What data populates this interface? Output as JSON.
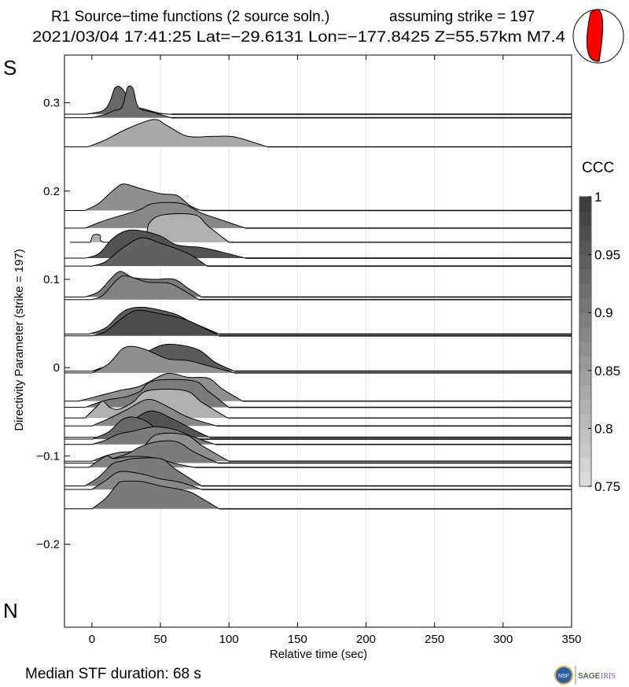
{
  "header": {
    "title_line1": "R1 Source−time functions (2 source soln.)",
    "strike_label": "assuming strike = 197",
    "title_line2": "2021/03/04 17:41:25  Lat=−29.6131 Lon=−177.8425  Z=55.57km  M7.4"
  },
  "labels": {
    "south": "S",
    "north": "N"
  },
  "footer": {
    "median_duration": "Median STF duration: 68 s",
    "logo_sage": "SAGE",
    "logo_iris": "IRIS",
    "logo_nsf": "NSF"
  },
  "colors": {
    "beachball": "#ff0000",
    "grid": "#e6e6e6"
  },
  "chart_data": {
    "type": "area",
    "title": "R1 Source-time functions (2 source soln.)",
    "xlabel": "Relative time (sec)",
    "ylabel": "Directivity Parameter (strike = 197)",
    "xlim": [
      -20,
      350
    ],
    "ylim": [
      -0.294,
      0.354
    ],
    "xticks": [
      0,
      50,
      100,
      150,
      200,
      250,
      300,
      350
    ],
    "xtick_labels": [
      "0",
      "50",
      "100",
      "150",
      "200",
      "250",
      "300",
      "350"
    ],
    "yticks": [
      0.3,
      0.2,
      0.1,
      0,
      -0.1,
      -0.2
    ],
    "ytick_labels": [
      "0.3",
      "0.2",
      "0.1",
      "0",
      "−0.1",
      "−0.2"
    ],
    "grid": "vertical",
    "colorbar": {
      "label": "CCC",
      "range": [
        0.75,
        1
      ],
      "ticks": [
        1,
        0.95,
        0.9,
        0.85,
        0.8,
        0.75
      ],
      "tick_labels": [
        "1",
        "0.95",
        "0.9",
        "0.85",
        "0.8",
        "0.75"
      ],
      "bins": 20
    },
    "traces": [
      {
        "d": 0.287,
        "ccc": 0.93,
        "start": -20,
        "pts": [
          [
            -5,
            0
          ],
          [
            8,
            0.004
          ],
          [
            13,
            0.014
          ],
          [
            17,
            0.03
          ],
          [
            22,
            0.029
          ],
          [
            30,
            0.01
          ],
          [
            38,
            0.006
          ],
          [
            50,
            0.001
          ],
          [
            58,
            0
          ]
        ]
      },
      {
        "d": 0.283,
        "ccc": 0.92,
        "start": -20,
        "pts": [
          [
            0,
            0
          ],
          [
            10,
            0.004
          ],
          [
            16,
            0.008
          ],
          [
            22,
            0.012
          ],
          [
            26,
            0.034
          ],
          [
            30,
            0.033
          ],
          [
            34,
            0.012
          ],
          [
            45,
            0.006
          ],
          [
            58,
            0
          ]
        ]
      },
      {
        "d": 0.25,
        "ccc": 0.83,
        "start": -20,
        "pts": [
          [
            -3,
            0
          ],
          [
            10,
            0.008
          ],
          [
            25,
            0.02
          ],
          [
            45,
            0.031
          ],
          [
            55,
            0.024
          ],
          [
            70,
            0.012
          ],
          [
            90,
            0.012
          ],
          [
            105,
            0.011
          ],
          [
            128,
            0
          ]
        ]
      },
      {
        "d": 0.178,
        "ccc": 0.87,
        "start": -20,
        "pts": [
          [
            -5,
            0
          ],
          [
            5,
            0.008
          ],
          [
            15,
            0.022
          ],
          [
            23,
            0.03
          ],
          [
            35,
            0.025
          ],
          [
            50,
            0.019
          ],
          [
            62,
            0.017
          ],
          [
            72,
            0.005
          ],
          [
            80,
            0
          ]
        ]
      },
      {
        "d": 0.158,
        "ccc": 0.88,
        "start": -20,
        "pts": [
          [
            -5,
            0
          ],
          [
            10,
            0.009
          ],
          [
            25,
            0.016
          ],
          [
            35,
            0.021
          ],
          [
            45,
            0.028
          ],
          [
            65,
            0.028
          ],
          [
            80,
            0.017
          ],
          [
            95,
            0.009
          ],
          [
            112,
            0
          ]
        ]
      },
      {
        "d": 0.142,
        "ccc": 0.82,
        "start": -16,
        "pts": [
          [
            -1,
            0
          ],
          [
            1,
            0.008
          ],
          [
            6,
            0.008
          ],
          [
            9,
            0
          ],
          [
            36,
            0
          ],
          [
            42,
            0.022
          ],
          [
            52,
            0.031
          ],
          [
            75,
            0.031
          ],
          [
            85,
            0.018
          ],
          [
            100,
            0
          ]
        ]
      },
      {
        "d": 0.124,
        "ccc": 0.96,
        "start": -20,
        "pts": [
          [
            -5,
            0
          ],
          [
            5,
            0.005
          ],
          [
            15,
            0.022
          ],
          [
            25,
            0.031
          ],
          [
            36,
            0.031
          ],
          [
            50,
            0.025
          ],
          [
            62,
            0.015
          ],
          [
            80,
            0.012
          ],
          [
            92,
            0.008
          ],
          [
            112,
            0
          ]
        ]
      },
      {
        "d": 0.115,
        "ccc": 0.94,
        "start": -20,
        "pts": [
          [
            0,
            0
          ],
          [
            10,
            0.005
          ],
          [
            22,
            0.02
          ],
          [
            36,
            0.032
          ],
          [
            50,
            0.026
          ],
          [
            66,
            0.017
          ],
          [
            74,
            0.011
          ],
          [
            84,
            0
          ]
        ]
      },
      {
        "d": 0.08,
        "ccc": 0.9,
        "start": -20,
        "pts": [
          [
            -5,
            0
          ],
          [
            5,
            0.006
          ],
          [
            14,
            0.021
          ],
          [
            21,
            0.029
          ],
          [
            30,
            0.022
          ],
          [
            45,
            0.02
          ],
          [
            60,
            0.02
          ],
          [
            70,
            0.01
          ],
          [
            80,
            0
          ]
        ]
      },
      {
        "d": 0.077,
        "ccc": 0.89,
        "start": -20,
        "pts": [
          [
            0,
            0
          ],
          [
            8,
            0.005
          ],
          [
            18,
            0.022
          ],
          [
            25,
            0.027
          ],
          [
            40,
            0.02
          ],
          [
            55,
            0.019
          ],
          [
            63,
            0.014
          ],
          [
            78,
            0
          ]
        ]
      },
      {
        "d": 0.038,
        "ccc": 0.94,
        "start": -20,
        "pts": [
          [
            -2,
            0
          ],
          [
            10,
            0.007
          ],
          [
            20,
            0.022
          ],
          [
            28,
            0.029
          ],
          [
            40,
            0.03
          ],
          [
            60,
            0.023
          ],
          [
            72,
            0.014
          ],
          [
            93,
            0
          ]
        ]
      },
      {
        "d": 0.036,
        "ccc": 0.97,
        "start": -20,
        "pts": [
          [
            0,
            0
          ],
          [
            10,
            0.005
          ],
          [
            22,
            0.02
          ],
          [
            33,
            0.029
          ],
          [
            50,
            0.025
          ],
          [
            65,
            0.02
          ],
          [
            75,
            0.014
          ],
          [
            93,
            0
          ]
        ]
      },
      {
        "d": -0.004,
        "ccc": 0.95,
        "start": -20,
        "pts": [
          [
            0,
            0
          ],
          [
            15,
            0.008
          ],
          [
            35,
            0.018
          ],
          [
            50,
            0.029
          ],
          [
            62,
            0.03
          ],
          [
            78,
            0.024
          ],
          [
            90,
            0.01
          ],
          [
            104,
            0
          ]
        ]
      },
      {
        "d": -0.006,
        "ccc": 0.87,
        "start": -20,
        "pts": [
          [
            0,
            0
          ],
          [
            12,
            0.01
          ],
          [
            22,
            0.027
          ],
          [
            30,
            0.03
          ],
          [
            40,
            0.026
          ],
          [
            55,
            0.016
          ],
          [
            70,
            0.014
          ],
          [
            85,
            0.008
          ],
          [
            104,
            0
          ]
        ]
      },
      {
        "d": -0.038,
        "ccc": 0.87,
        "start": -20,
        "pts": [
          [
            -10,
            0
          ],
          [
            5,
            0.006
          ],
          [
            20,
            0.012
          ],
          [
            35,
            0.017
          ],
          [
            52,
            0.03
          ],
          [
            60,
            0.031
          ],
          [
            70,
            0.027
          ],
          [
            85,
            0.026
          ],
          [
            95,
            0.014
          ],
          [
            110,
            0
          ]
        ]
      },
      {
        "d": -0.045,
        "ccc": 0.9,
        "start": -20,
        "pts": [
          [
            -5,
            0
          ],
          [
            10,
            0.008
          ],
          [
            25,
            0.012
          ],
          [
            35,
            0.018
          ],
          [
            45,
            0.03
          ],
          [
            74,
            0.03
          ],
          [
            85,
            0.018
          ],
          [
            100,
            0
          ]
        ]
      },
      {
        "d": -0.057,
        "ccc": 0.82,
        "start": -20,
        "pts": [
          [
            -5,
            0
          ],
          [
            3,
            0.012
          ],
          [
            8,
            0.019
          ],
          [
            13,
            0.012
          ],
          [
            20,
            0.01
          ],
          [
            30,
            0.018
          ],
          [
            41,
            0.031
          ],
          [
            68,
            0.031
          ],
          [
            80,
            0.018
          ],
          [
            99,
            0
          ]
        ]
      },
      {
        "d": -0.066,
        "ccc": 0.88,
        "start": -20,
        "pts": [
          [
            0,
            0
          ],
          [
            12,
            0.008
          ],
          [
            25,
            0.018
          ],
          [
            41,
            0.03
          ],
          [
            55,
            0.022
          ],
          [
            70,
            0.01
          ],
          [
            91,
            0
          ]
        ]
      },
      {
        "d": -0.079,
        "ccc": 0.96,
        "start": -20,
        "pts": [
          [
            5,
            0
          ],
          [
            15,
            0.006
          ],
          [
            30,
            0.02
          ],
          [
            44,
            0.03
          ],
          [
            60,
            0.02
          ],
          [
            75,
            0.008
          ],
          [
            86,
            0
          ]
        ]
      },
      {
        "d": -0.081,
        "ccc": 0.93,
        "start": -20,
        "pts": [
          [
            0,
            0
          ],
          [
            12,
            0.008
          ],
          [
            22,
            0.022
          ],
          [
            30,
            0.025
          ],
          [
            40,
            0.02
          ],
          [
            48,
            0.01
          ],
          [
            60,
            0
          ]
        ]
      },
      {
        "d": -0.087,
        "ccc": 0.9,
        "start": -20,
        "pts": [
          [
            0,
            0
          ],
          [
            10,
            0.005
          ],
          [
            20,
            0.012
          ],
          [
            30,
            0.015
          ],
          [
            45,
            0.02
          ],
          [
            60,
            0.017
          ],
          [
            75,
            0.008
          ],
          [
            90,
            0
          ]
        ]
      },
      {
        "d": -0.106,
        "ccc": 0.87,
        "start": -20,
        "pts": [
          [
            0,
            0
          ],
          [
            10,
            0.006
          ],
          [
            20,
            0.01
          ],
          [
            35,
            0.013
          ],
          [
            47,
            0.03
          ],
          [
            68,
            0.03
          ],
          [
            80,
            0.018
          ],
          [
            100,
            0
          ]
        ]
      },
      {
        "d": -0.108,
        "ccc": 0.9,
        "start": -20,
        "pts": [
          [
            5,
            0
          ],
          [
            25,
            0.01
          ],
          [
            35,
            0.018
          ],
          [
            47,
            0.024
          ],
          [
            62,
            0.024
          ],
          [
            75,
            0.012
          ],
          [
            92,
            0
          ]
        ]
      },
      {
        "d": -0.113,
        "ccc": 0.89,
        "start": -20,
        "pts": [
          [
            -2,
            0
          ],
          [
            5,
            0.008
          ],
          [
            11,
            0.013
          ],
          [
            16,
            0.01
          ],
          [
            25,
            0.012
          ],
          [
            40,
            0.012
          ],
          [
            50,
            0.009
          ],
          [
            62,
            0.004
          ],
          [
            75,
            0
          ]
        ]
      },
      {
        "d": -0.134,
        "ccc": 0.9,
        "start": -20,
        "pts": [
          [
            -5,
            0
          ],
          [
            5,
            0.01
          ],
          [
            15,
            0.025
          ],
          [
            22,
            0.028
          ],
          [
            30,
            0.031
          ],
          [
            50,
            0.031
          ],
          [
            60,
            0.02
          ],
          [
            80,
            0
          ]
        ]
      },
      {
        "d": -0.138,
        "ccc": 0.88,
        "start": -20,
        "pts": [
          [
            0,
            0
          ],
          [
            10,
            0.01
          ],
          [
            20,
            0.02
          ],
          [
            35,
            0.018
          ],
          [
            50,
            0.012
          ],
          [
            65,
            0.008
          ],
          [
            80,
            0
          ]
        ]
      },
      {
        "d": -0.16,
        "ccc": 0.9,
        "start": -20,
        "pts": [
          [
            0,
            0
          ],
          [
            10,
            0.012
          ],
          [
            18,
            0.027
          ],
          [
            22,
            0.031
          ],
          [
            36,
            0.031
          ],
          [
            50,
            0.026
          ],
          [
            70,
            0.02
          ],
          [
            80,
            0.012
          ],
          [
            93,
            0
          ]
        ]
      }
    ]
  }
}
